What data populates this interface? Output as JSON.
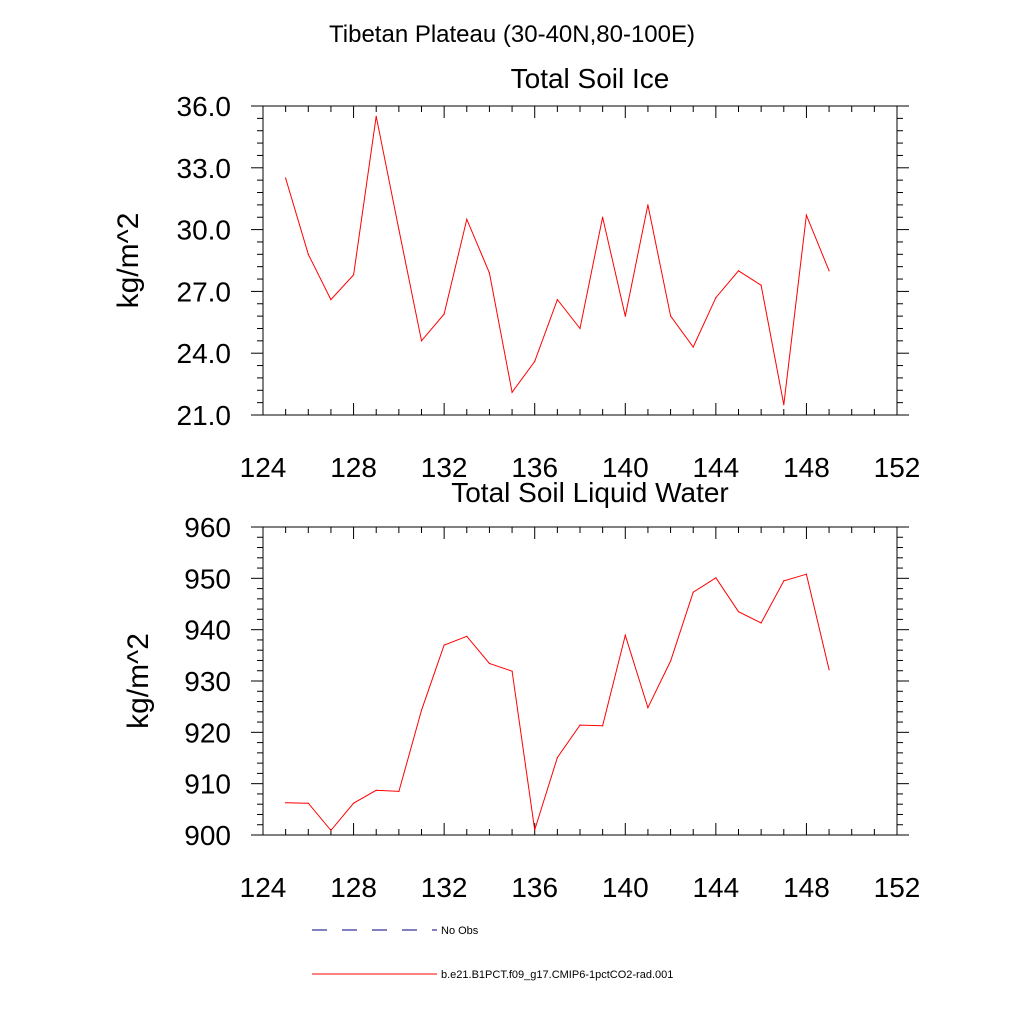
{
  "figure": {
    "suptitle": "Tibetan Plateau (30-40N,80-100E)"
  },
  "chart_data": [
    {
      "type": "line",
      "title": "Total Soil Ice",
      "xlabel": "",
      "ylabel": "kg/m^2",
      "xlim": [
        124,
        152
      ],
      "ylim": [
        21.0,
        36.0
      ],
      "xticks": [
        "124",
        "128",
        "132",
        "136",
        "140",
        "144",
        "148",
        "152"
      ],
      "yticks": [
        "21.0",
        "24.0",
        "27.0",
        "30.0",
        "33.0",
        "36.0"
      ],
      "grid": false,
      "series": [
        {
          "name": "b.e21.B1PCT.f09_g17.CMIP6-1pctCO2-rad.001",
          "color": "#ff0000",
          "x": [
            125,
            126,
            127,
            128,
            129,
            130,
            131,
            132,
            133,
            134,
            135,
            136,
            137,
            138,
            139,
            140,
            141,
            142,
            143,
            144,
            145,
            146,
            147,
            148,
            149
          ],
          "y": [
            32.5,
            28.8,
            26.6,
            27.8,
            35.5,
            30.0,
            24.6,
            25.9,
            30.5,
            27.9,
            22.1,
            23.6,
            26.6,
            25.2,
            30.6,
            25.8,
            31.2,
            25.8,
            24.3,
            26.7,
            28.0,
            27.3,
            21.5,
            30.7,
            28.0
          ]
        }
      ]
    },
    {
      "type": "line",
      "title": "Total Soil Liquid Water",
      "xlabel": "",
      "ylabel": "kg/m^2",
      "xlim": [
        124,
        152
      ],
      "ylim": [
        900,
        960
      ],
      "xticks": [
        "124",
        "128",
        "132",
        "136",
        "140",
        "144",
        "148",
        "152"
      ],
      "yticks": [
        "900",
        "910",
        "920",
        "930",
        "940",
        "950",
        "960"
      ],
      "grid": false,
      "series": [
        {
          "name": "b.e21.B1PCT.f09_g17.CMIP6-1pctCO2-rad.001",
          "color": "#ff0000",
          "x": [
            125,
            126,
            127,
            128,
            129,
            130,
            131,
            132,
            133,
            134,
            135,
            136,
            137,
            138,
            139,
            140,
            141,
            142,
            143,
            144,
            145,
            146,
            147,
            148,
            149
          ],
          "y": [
            906.3,
            906.2,
            900.9,
            906.2,
            908.7,
            908.5,
            924.3,
            937.0,
            938.7,
            933.4,
            931.9,
            901.0,
            915.1,
            921.4,
            921.3,
            938.9,
            924.8,
            933.9,
            947.3,
            950.1,
            943.5,
            941.3,
            949.5,
            950.8,
            932.2
          ]
        }
      ]
    }
  ],
  "legend": {
    "placement": "bottom",
    "items": [
      {
        "label": "No Obs",
        "color": "#000080",
        "style": "dashed"
      },
      {
        "label": "b.e21.B1PCT.f09_g17.CMIP6-1pctCO2-rad.001",
        "color": "#ff0000",
        "style": "solid"
      }
    ]
  }
}
